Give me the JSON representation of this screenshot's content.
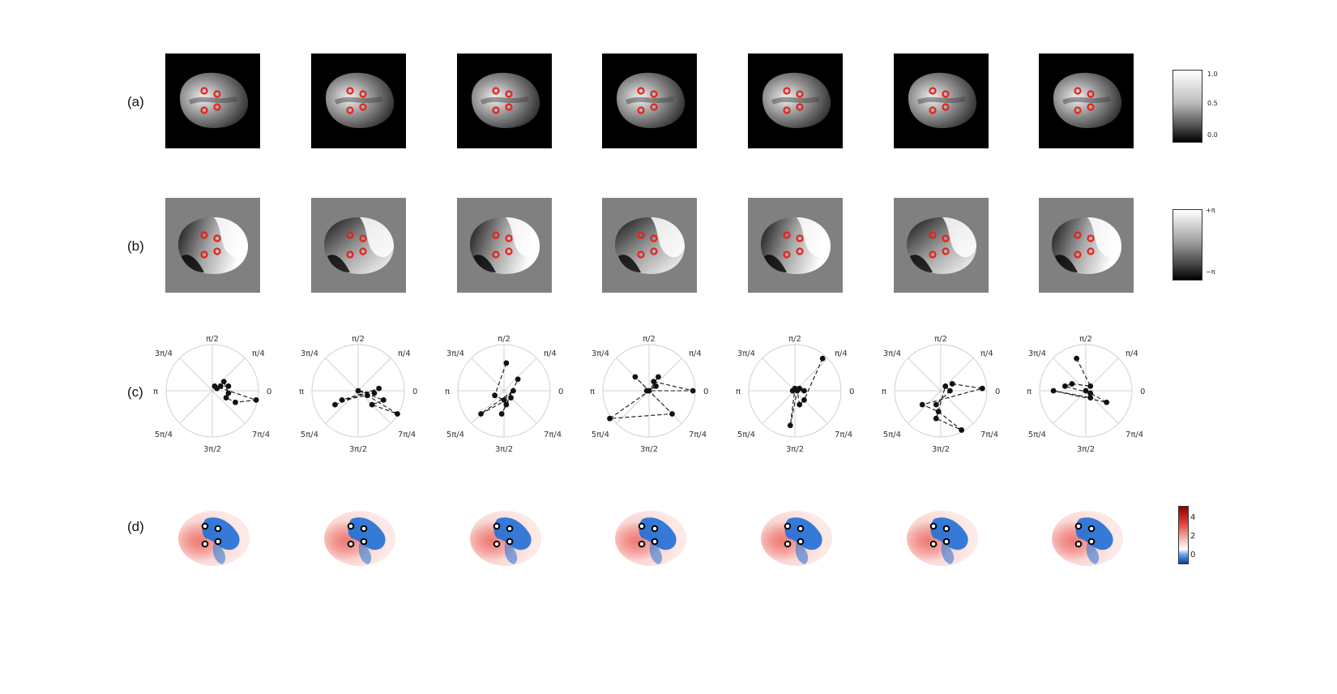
{
  "rows": {
    "a": {
      "label": "(a)"
    },
    "b": {
      "label": "(b)"
    },
    "c": {
      "label": "(c)"
    },
    "d": {
      "label": "(d)"
    }
  },
  "colorbar_a": {
    "ticks": [
      "1.0",
      "0.5",
      "0.0"
    ]
  },
  "colorbar_b": {
    "ticks": [
      "+π",
      "−π"
    ]
  },
  "colorbar_d": {
    "ticks": [
      "4",
      "2",
      "0"
    ]
  },
  "polar": {
    "angle_labels": [
      "0",
      "π/4",
      "π/2",
      "3π/4",
      "π",
      "5π/4",
      "3π/2",
      "7π/4"
    ]
  },
  "colors": {
    "marker_red": "#e8211b",
    "marker_black": "#111111",
    "map_blue": "#1f6fd6",
    "map_red": "#e8423a",
    "phase_gray": "#808080"
  },
  "chart_data": [
    {
      "type": "scatter",
      "panel": 1,
      "points": [
        [
          0.25,
          0.2
        ],
        [
          0.35,
          -0.05
        ],
        [
          0.3,
          -0.15
        ],
        [
          0.5,
          -0.25
        ],
        [
          0.95,
          -0.2
        ],
        [
          0.05,
          0.1
        ],
        [
          0.1,
          0.05
        ],
        [
          0.18,
          0.1
        ],
        [
          0.35,
          0.1
        ]
      ]
    },
    {
      "type": "scatter",
      "panel": 2,
      "points": [
        [
          -0.5,
          -0.3
        ],
        [
          0.45,
          0.05
        ],
        [
          -0.35,
          -0.2
        ],
        [
          0.2,
          -0.1
        ],
        [
          0.85,
          -0.5
        ],
        [
          0.3,
          -0.3
        ],
        [
          0.55,
          -0.2
        ],
        [
          0.0,
          0.0
        ],
        [
          0.35,
          -0.05
        ]
      ]
    },
    {
      "type": "scatter",
      "panel": 3,
      "points": [
        [
          0.05,
          0.6
        ],
        [
          -0.2,
          -0.1
        ],
        [
          0.0,
          -0.2
        ],
        [
          0.2,
          0.0
        ],
        [
          -0.5,
          -0.5
        ],
        [
          0.15,
          -0.15
        ],
        [
          0.05,
          -0.3
        ],
        [
          -0.05,
          -0.5
        ],
        [
          0.3,
          0.25
        ]
      ]
    },
    {
      "type": "scatter",
      "panel": 4,
      "points": [
        [
          0.1,
          0.2
        ],
        [
          0.95,
          0.0
        ],
        [
          -0.05,
          0.0
        ],
        [
          0.15,
          0.1
        ],
        [
          -0.85,
          -0.6
        ],
        [
          0.5,
          -0.5
        ],
        [
          -0.3,
          0.3
        ],
        [
          0.0,
          0.0
        ],
        [
          0.2,
          0.3
        ]
      ]
    },
    {
      "type": "scatter",
      "panel": 5,
      "points": [
        [
          0.6,
          0.7
        ],
        [
          0.2,
          -0.2
        ],
        [
          0.1,
          -0.3
        ],
        [
          0.05,
          0.0
        ],
        [
          -0.1,
          -0.75
        ],
        [
          0.0,
          0.05
        ],
        [
          0.1,
          0.05
        ],
        [
          0.2,
          0.0
        ],
        [
          -0.05,
          0.0
        ]
      ]
    },
    {
      "type": "scatter",
      "panel": 6,
      "points": [
        [
          0.25,
          0.15
        ],
        [
          0.9,
          0.05
        ],
        [
          -0.4,
          -0.3
        ],
        [
          -0.05,
          -0.45
        ],
        [
          0.45,
          -0.85
        ],
        [
          -0.1,
          -0.6
        ],
        [
          0.1,
          0.1
        ],
        [
          0.2,
          0.0
        ],
        [
          -0.1,
          -0.3
        ]
      ]
    },
    {
      "type": "scatter",
      "panel": 7,
      "points": [
        [
          -0.2,
          0.7
        ],
        [
          0.1,
          0.1
        ],
        [
          -0.3,
          0.15
        ],
        [
          -0.45,
          0.1
        ],
        [
          0.1,
          -0.05
        ],
        [
          0.45,
          -0.25
        ],
        [
          -0.7,
          0.0
        ],
        [
          0.1,
          -0.15
        ],
        [
          0.0,
          0.0
        ]
      ]
    }
  ]
}
